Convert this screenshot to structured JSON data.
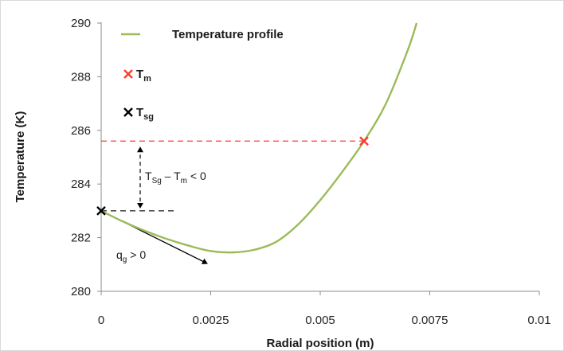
{
  "chart_data": {
    "type": "line",
    "xlabel": "Radial position (m)",
    "ylabel": "Temperature (K)",
    "xlim": [
      0,
      0.01
    ],
    "ylim": [
      280,
      290
    ],
    "x_ticks": [
      0,
      0.0025,
      0.005,
      0.0075,
      0.01
    ],
    "x_tick_labels": [
      "0",
      "0.0025",
      "0.005",
      "0.0075",
      "0.01"
    ],
    "y_ticks": [
      280,
      282,
      284,
      286,
      288,
      290
    ],
    "y_tick_labels": [
      "280",
      "282",
      "284",
      "286",
      "288",
      "290"
    ],
    "grid": false,
    "legend_position": "top-left",
    "series": [
      {
        "name": "Temperature profile",
        "color": "#9bbb59",
        "x": [
          0,
          0.0005,
          0.001,
          0.0015,
          0.002,
          0.0025,
          0.003,
          0.0035,
          0.004,
          0.0045,
          0.005,
          0.0055,
          0.006,
          0.0065,
          0.007,
          0.0072
        ],
        "y": [
          283.0,
          282.6,
          282.25,
          281.95,
          281.7,
          281.5,
          281.45,
          281.55,
          281.85,
          282.5,
          283.4,
          284.45,
          285.6,
          287.0,
          289.0,
          290.0
        ]
      }
    ],
    "points": [
      {
        "name": "Tm",
        "x": 0.006,
        "y": 285.6,
        "color": "#ff3b30"
      },
      {
        "name": "Tsg",
        "x": 0.0,
        "y": 283.0,
        "color": "#000000"
      }
    ],
    "legend": [
      {
        "main": "Temperature profile",
        "sub": ""
      },
      {
        "main": "T",
        "sub": "m"
      },
      {
        "main": "T",
        "sub": "sg"
      }
    ],
    "annotations": {
      "temp_diff": {
        "a": "T",
        "a_sub": "Sg",
        "mid": " – T",
        "b_sub": "m",
        "tail": " < 0"
      },
      "flux": {
        "a": "q",
        "a_sub": "g",
        "tail": " > 0"
      }
    }
  }
}
